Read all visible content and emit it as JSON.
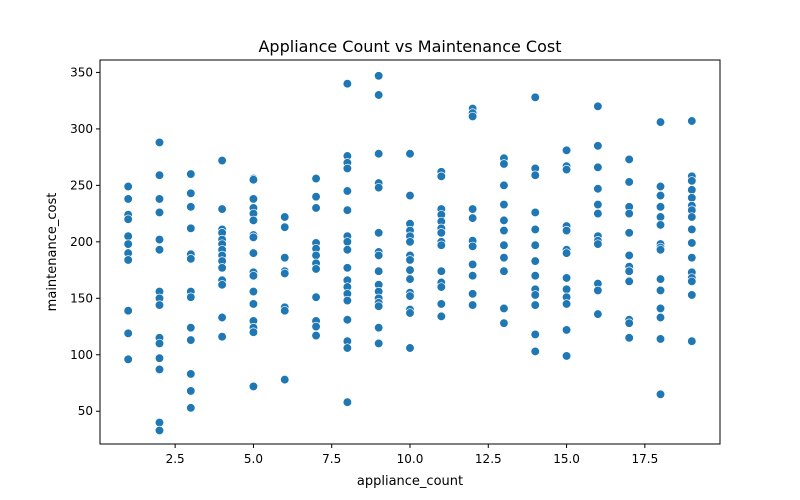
{
  "chart_data": {
    "type": "scatter",
    "title": "Appliance Count vs Maintenance Cost",
    "xlabel": "appliance_count",
    "ylabel": "maintenance_cost",
    "xlim": [
      0.1,
      19.9
    ],
    "ylim": [
      21,
      361
    ],
    "xticks": [
      2.5,
      5.0,
      7.5,
      10.0,
      12.5,
      15.0,
      17.5
    ],
    "xtick_labels": [
      "2.5",
      "5.0",
      "7.5",
      "10.0",
      "12.5",
      "15.0",
      "17.5"
    ],
    "yticks": [
      50,
      100,
      150,
      200,
      250,
      300,
      350
    ],
    "ytick_labels": [
      "50",
      "100",
      "150",
      "200",
      "250",
      "300",
      "350"
    ],
    "grid": false,
    "color": "#1f77b4",
    "points": [
      [
        1,
        249
      ],
      [
        1,
        238
      ],
      [
        1,
        224
      ],
      [
        1,
        220
      ],
      [
        1,
        205
      ],
      [
        1,
        198
      ],
      [
        1,
        190
      ],
      [
        1,
        184
      ],
      [
        1,
        139
      ],
      [
        1,
        119
      ],
      [
        1,
        96
      ],
      [
        2,
        288
      ],
      [
        2,
        259
      ],
      [
        2,
        238
      ],
      [
        2,
        226
      ],
      [
        2,
        202
      ],
      [
        2,
        193
      ],
      [
        2,
        156
      ],
      [
        2,
        150
      ],
      [
        2,
        144
      ],
      [
        2,
        115
      ],
      [
        2,
        110
      ],
      [
        2,
        97
      ],
      [
        2,
        87
      ],
      [
        2,
        40
      ],
      [
        2,
        33
      ],
      [
        3,
        260
      ],
      [
        3,
        243
      ],
      [
        3,
        231
      ],
      [
        3,
        212
      ],
      [
        3,
        189
      ],
      [
        3,
        185
      ],
      [
        3,
        156
      ],
      [
        3,
        151
      ],
      [
        3,
        124
      ],
      [
        3,
        113
      ],
      [
        3,
        83
      ],
      [
        3,
        68
      ],
      [
        3,
        53
      ],
      [
        4,
        272
      ],
      [
        4,
        229
      ],
      [
        4,
        211
      ],
      [
        4,
        208
      ],
      [
        4,
        202
      ],
      [
        4,
        198
      ],
      [
        4,
        193
      ],
      [
        4,
        188
      ],
      [
        4,
        183
      ],
      [
        4,
        177
      ],
      [
        4,
        166
      ],
      [
        4,
        162
      ],
      [
        4,
        133
      ],
      [
        4,
        116
      ],
      [
        5,
        256
      ],
      [
        5,
        255
      ],
      [
        5,
        238
      ],
      [
        5,
        230
      ],
      [
        5,
        225
      ],
      [
        5,
        219
      ],
      [
        5,
        206
      ],
      [
        5,
        204
      ],
      [
        5,
        190
      ],
      [
        5,
        173
      ],
      [
        5,
        170
      ],
      [
        5,
        156
      ],
      [
        5,
        145
      ],
      [
        5,
        130
      ],
      [
        5,
        124
      ],
      [
        5,
        120
      ],
      [
        5,
        72
      ],
      [
        6,
        222
      ],
      [
        6,
        213
      ],
      [
        6,
        186
      ],
      [
        6,
        174
      ],
      [
        6,
        172
      ],
      [
        6,
        142
      ],
      [
        6,
        139
      ],
      [
        6,
        78
      ],
      [
        7,
        256
      ],
      [
        7,
        240
      ],
      [
        7,
        230
      ],
      [
        7,
        199
      ],
      [
        7,
        194
      ],
      [
        7,
        188
      ],
      [
        7,
        181
      ],
      [
        7,
        176
      ],
      [
        7,
        151
      ],
      [
        7,
        130
      ],
      [
        7,
        125
      ],
      [
        7,
        117
      ],
      [
        8,
        340
      ],
      [
        8,
        276
      ],
      [
        8,
        270
      ],
      [
        8,
        265
      ],
      [
        8,
        245
      ],
      [
        8,
        228
      ],
      [
        8,
        205
      ],
      [
        8,
        200
      ],
      [
        8,
        193
      ],
      [
        8,
        177
      ],
      [
        8,
        166
      ],
      [
        8,
        160
      ],
      [
        8,
        154
      ],
      [
        8,
        148
      ],
      [
        8,
        131
      ],
      [
        8,
        112
      ],
      [
        8,
        106
      ],
      [
        8,
        58
      ],
      [
        9,
        347
      ],
      [
        9,
        330
      ],
      [
        9,
        278
      ],
      [
        9,
        252
      ],
      [
        9,
        248
      ],
      [
        9,
        208
      ],
      [
        9,
        191
      ],
      [
        9,
        188
      ],
      [
        9,
        174
      ],
      [
        9,
        162
      ],
      [
        9,
        156
      ],
      [
        9,
        150
      ],
      [
        9,
        146
      ],
      [
        9,
        143
      ],
      [
        9,
        124
      ],
      [
        9,
        110
      ],
      [
        10,
        278
      ],
      [
        10,
        241
      ],
      [
        10,
        216
      ],
      [
        10,
        210
      ],
      [
        10,
        205
      ],
      [
        10,
        200
      ],
      [
        10,
        188
      ],
      [
        10,
        184
      ],
      [
        10,
        175
      ],
      [
        10,
        167
      ],
      [
        10,
        155
      ],
      [
        10,
        152
      ],
      [
        10,
        140
      ],
      [
        10,
        137
      ],
      [
        10,
        106
      ],
      [
        11,
        262
      ],
      [
        11,
        258
      ],
      [
        11,
        229
      ],
      [
        11,
        224
      ],
      [
        11,
        218
      ],
      [
        11,
        212
      ],
      [
        11,
        208
      ],
      [
        11,
        200
      ],
      [
        11,
        197
      ],
      [
        11,
        174
      ],
      [
        11,
        164
      ],
      [
        11,
        160
      ],
      [
        11,
        145
      ],
      [
        11,
        134
      ],
      [
        12,
        318
      ],
      [
        12,
        314
      ],
      [
        12,
        311
      ],
      [
        12,
        229
      ],
      [
        12,
        221
      ],
      [
        12,
        201
      ],
      [
        12,
        196
      ],
      [
        12,
        180
      ],
      [
        12,
        170
      ],
      [
        12,
        154
      ],
      [
        12,
        144
      ],
      [
        13,
        274
      ],
      [
        13,
        269
      ],
      [
        13,
        250
      ],
      [
        13,
        233
      ],
      [
        13,
        219
      ],
      [
        13,
        210
      ],
      [
        13,
        197
      ],
      [
        13,
        186
      ],
      [
        13,
        174
      ],
      [
        13,
        141
      ],
      [
        13,
        128
      ],
      [
        14,
        328
      ],
      [
        14,
        265
      ],
      [
        14,
        259
      ],
      [
        14,
        226
      ],
      [
        14,
        211
      ],
      [
        14,
        197
      ],
      [
        14,
        183
      ],
      [
        14,
        170
      ],
      [
        14,
        158
      ],
      [
        14,
        153
      ],
      [
        14,
        144
      ],
      [
        14,
        118
      ],
      [
        14,
        103
      ],
      [
        15,
        281
      ],
      [
        15,
        267
      ],
      [
        15,
        264
      ],
      [
        15,
        214
      ],
      [
        15,
        210
      ],
      [
        15,
        193
      ],
      [
        15,
        190
      ],
      [
        15,
        168
      ],
      [
        15,
        158
      ],
      [
        15,
        151
      ],
      [
        15,
        145
      ],
      [
        15,
        122
      ],
      [
        15,
        99
      ],
      [
        16,
        320
      ],
      [
        16,
        285
      ],
      [
        16,
        266
      ],
      [
        16,
        247
      ],
      [
        16,
        233
      ],
      [
        16,
        225
      ],
      [
        16,
        205
      ],
      [
        16,
        201
      ],
      [
        16,
        198
      ],
      [
        16,
        163
      ],
      [
        16,
        157
      ],
      [
        16,
        136
      ],
      [
        17,
        273
      ],
      [
        17,
        253
      ],
      [
        17,
        231
      ],
      [
        17,
        225
      ],
      [
        17,
        208
      ],
      [
        17,
        188
      ],
      [
        17,
        178
      ],
      [
        17,
        174
      ],
      [
        17,
        165
      ],
      [
        17,
        131
      ],
      [
        17,
        128
      ],
      [
        17,
        115
      ],
      [
        18,
        306
      ],
      [
        18,
        249
      ],
      [
        18,
        241
      ],
      [
        18,
        231
      ],
      [
        18,
        222
      ],
      [
        18,
        215
      ],
      [
        18,
        198
      ],
      [
        18,
        195
      ],
      [
        18,
        193
      ],
      [
        18,
        167
      ],
      [
        18,
        157
      ],
      [
        18,
        141
      ],
      [
        18,
        133
      ],
      [
        18,
        114
      ],
      [
        18,
        65
      ],
      [
        19,
        307
      ],
      [
        19,
        258
      ],
      [
        19,
        254
      ],
      [
        19,
        246
      ],
      [
        19,
        239
      ],
      [
        19,
        232
      ],
      [
        19,
        228
      ],
      [
        19,
        222
      ],
      [
        19,
        211
      ],
      [
        19,
        199
      ],
      [
        19,
        186
      ],
      [
        19,
        173
      ],
      [
        19,
        168
      ],
      [
        19,
        165
      ],
      [
        19,
        153
      ],
      [
        19,
        112
      ]
    ]
  }
}
